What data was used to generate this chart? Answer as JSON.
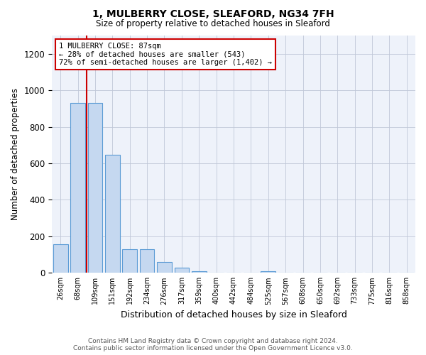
{
  "title1": "1, MULBERRY CLOSE, SLEAFORD, NG34 7FH",
  "title2": "Size of property relative to detached houses in Sleaford",
  "xlabel": "Distribution of detached houses by size in Sleaford",
  "ylabel": "Number of detached properties",
  "bar_labels": [
    "26sqm",
    "68sqm",
    "109sqm",
    "151sqm",
    "192sqm",
    "234sqm",
    "276sqm",
    "317sqm",
    "359sqm",
    "400sqm",
    "442sqm",
    "484sqm",
    "525sqm",
    "567sqm",
    "608sqm",
    "650sqm",
    "692sqm",
    "733sqm",
    "775sqm",
    "816sqm",
    "858sqm"
  ],
  "bar_values": [
    155,
    930,
    930,
    645,
    130,
    130,
    60,
    30,
    10,
    0,
    0,
    0,
    10,
    0,
    0,
    0,
    0,
    0,
    0,
    0,
    0
  ],
  "bar_color": "#c5d8f0",
  "bar_edge_color": "#5b9bd5",
  "ylim": [
    0,
    1300
  ],
  "yticks": [
    0,
    200,
    400,
    600,
    800,
    1000,
    1200
  ],
  "property_line_color": "#cc0000",
  "annotation_text": "1 MULBERRY CLOSE: 87sqm\n← 28% of detached houses are smaller (543)\n72% of semi-detached houses are larger (1,402) →",
  "annotation_box_color": "#cc0000",
  "footer_text": "Contains HM Land Registry data © Crown copyright and database right 2024.\nContains public sector information licensed under the Open Government Licence v3.0.",
  "background_color": "#ffffff",
  "plot_bg_color": "#eef2fa",
  "grid_color": "#c0c8d8"
}
